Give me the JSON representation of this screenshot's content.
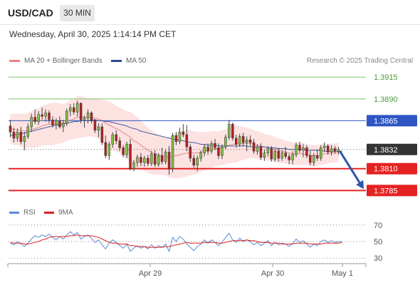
{
  "header": {
    "symbol": "USD/CAD",
    "timeframe": "30 MIN"
  },
  "datetime": "Wednesday, April 30, 2025 1:14:14 PM CET",
  "legend": {
    "ma20": {
      "label": "MA 20 + Bollinger Bands",
      "color": "#f08080"
    },
    "ma50": {
      "label": "MA 50",
      "color": "#2e4a8f"
    }
  },
  "copyright": "Research © 2025 Trading Central",
  "rsi_legend": {
    "rsi": {
      "label": "RSI",
      "color": "#5b8bd9"
    },
    "ma9": {
      "label": "9MA",
      "color": "#e02020"
    }
  },
  "chart_data": [
    {
      "type": "candlestick",
      "title": "",
      "ylim": [
        1.3773,
        1.3925
      ],
      "x_ticks": [
        "Apr 29",
        "Apr 30",
        "May 1"
      ],
      "levels": [
        {
          "value": 1.3915,
          "label": "1.3915",
          "color": "#7cc26f",
          "badge": false
        },
        {
          "value": 1.389,
          "label": "1.3890",
          "color": "#7cc26f",
          "badge": false
        },
        {
          "value": 1.3865,
          "label": "1.3865",
          "color": "#2d56c4",
          "badge": true
        },
        {
          "value": 1.3832,
          "label": "1.3832",
          "color": "#333333",
          "badge": true,
          "dotted": true
        },
        {
          "value": 1.381,
          "label": "1.3810",
          "color": "#e52222",
          "badge": true
        },
        {
          "value": 1.3785,
          "label": "1.3785",
          "color": "#e52222",
          "badge": true
        }
      ],
      "colors": {
        "up": "#7fbf3f",
        "down": "#b22222",
        "band": "#fde2e2",
        "ma20": "#e08888",
        "ma50": "#3b5a9a",
        "arrow": "#2d56a8"
      },
      "ohlc": [
        [
          1.3859,
          1.3866,
          1.3846,
          1.3852
        ],
        [
          1.3852,
          1.3857,
          1.384,
          1.3845
        ],
        [
          1.3845,
          1.3856,
          1.3841,
          1.3852
        ],
        [
          1.3852,
          1.3858,
          1.3838,
          1.3841
        ],
        [
          1.3841,
          1.3852,
          1.3831,
          1.3847
        ],
        [
          1.3847,
          1.3862,
          1.3844,
          1.3858
        ],
        [
          1.3858,
          1.3873,
          1.3852,
          1.3869
        ],
        [
          1.3869,
          1.3878,
          1.3861,
          1.3864
        ],
        [
          1.3864,
          1.3876,
          1.386,
          1.3872
        ],
        [
          1.3872,
          1.388,
          1.3866,
          1.387
        ],
        [
          1.387,
          1.3878,
          1.3864,
          1.3874
        ],
        [
          1.3874,
          1.3877,
          1.3862,
          1.3866
        ],
        [
          1.3866,
          1.387,
          1.3857,
          1.386
        ],
        [
          1.386,
          1.3868,
          1.3855,
          1.3865
        ],
        [
          1.3865,
          1.387,
          1.3856,
          1.3858
        ],
        [
          1.3858,
          1.3866,
          1.3852,
          1.3862
        ],
        [
          1.3862,
          1.3879,
          1.3859,
          1.3876
        ],
        [
          1.3876,
          1.3884,
          1.387,
          1.388
        ],
        [
          1.388,
          1.3885,
          1.3872,
          1.3875
        ],
        [
          1.3875,
          1.3888,
          1.387,
          1.3885
        ],
        [
          1.3885,
          1.3886,
          1.3862,
          1.3866
        ],
        [
          1.3866,
          1.3871,
          1.3857,
          1.3868
        ],
        [
          1.3868,
          1.3878,
          1.3862,
          1.3874
        ],
        [
          1.3874,
          1.3876,
          1.3862,
          1.3865
        ],
        [
          1.3865,
          1.3867,
          1.3851,
          1.3854
        ],
        [
          1.3854,
          1.3862,
          1.3846,
          1.3858
        ],
        [
          1.3858,
          1.3862,
          1.3837,
          1.384
        ],
        [
          1.384,
          1.3848,
          1.3822,
          1.3825
        ],
        [
          1.3825,
          1.3841,
          1.382,
          1.3838
        ],
        [
          1.3838,
          1.3852,
          1.3834,
          1.3849
        ],
        [
          1.3849,
          1.3854,
          1.3838,
          1.3842
        ],
        [
          1.3842,
          1.3846,
          1.383,
          1.3834
        ],
        [
          1.3834,
          1.3837,
          1.3823,
          1.3826
        ],
        [
          1.3826,
          1.3841,
          1.3822,
          1.3838
        ],
        [
          1.3838,
          1.3844,
          1.3808,
          1.381
        ],
        [
          1.381,
          1.382,
          1.3807,
          1.3817
        ],
        [
          1.3817,
          1.3826,
          1.3812,
          1.3823
        ],
        [
          1.3823,
          1.3828,
          1.3813,
          1.3817
        ],
        [
          1.3817,
          1.3825,
          1.3812,
          1.3822
        ],
        [
          1.3822,
          1.3826,
          1.3813,
          1.3816
        ],
        [
          1.3816,
          1.383,
          1.3813,
          1.3827
        ],
        [
          1.3827,
          1.3831,
          1.3812,
          1.3815
        ],
        [
          1.3815,
          1.3828,
          1.3812,
          1.3825
        ],
        [
          1.3825,
          1.3834,
          1.3815,
          1.3818
        ],
        [
          1.3818,
          1.3832,
          1.3815,
          1.3829
        ],
        [
          1.3829,
          1.3836,
          1.3803,
          1.381
        ],
        [
          1.381,
          1.3851,
          1.3806,
          1.3848
        ],
        [
          1.3848,
          1.3852,
          1.3837,
          1.3841
        ],
        [
          1.3841,
          1.3857,
          1.3838,
          1.3852
        ],
        [
          1.3852,
          1.3861,
          1.3846,
          1.3849
        ],
        [
          1.3849,
          1.386,
          1.383,
          1.3835
        ],
        [
          1.3835,
          1.3838,
          1.3818,
          1.3822
        ],
        [
          1.3822,
          1.3826,
          1.3811,
          1.3814
        ],
        [
          1.3814,
          1.3825,
          1.3807,
          1.3822
        ],
        [
          1.3822,
          1.3831,
          1.3818,
          1.3828
        ],
        [
          1.3828,
          1.3838,
          1.3824,
          1.3835
        ],
        [
          1.3835,
          1.3839,
          1.3826,
          1.383
        ],
        [
          1.383,
          1.3842,
          1.3827,
          1.3839
        ],
        [
          1.3839,
          1.3844,
          1.3831,
          1.3834
        ],
        [
          1.3834,
          1.3839,
          1.3821,
          1.3825
        ],
        [
          1.3825,
          1.3838,
          1.3821,
          1.3835
        ],
        [
          1.3835,
          1.3849,
          1.3832,
          1.3846
        ],
        [
          1.3846,
          1.3866,
          1.3843,
          1.3861
        ],
        [
          1.3861,
          1.3863,
          1.3842,
          1.3845
        ],
        [
          1.3845,
          1.3849,
          1.3834,
          1.3838
        ],
        [
          1.3838,
          1.385,
          1.3835,
          1.3847
        ],
        [
          1.3847,
          1.3851,
          1.3836,
          1.384
        ],
        [
          1.384,
          1.3847,
          1.383,
          1.3843
        ],
        [
          1.3843,
          1.3848,
          1.3836,
          1.384
        ],
        [
          1.384,
          1.3844,
          1.3827,
          1.383
        ],
        [
          1.383,
          1.3838,
          1.3826,
          1.3835
        ],
        [
          1.3835,
          1.3839,
          1.382,
          1.3823
        ],
        [
          1.3823,
          1.3832,
          1.3819,
          1.3828
        ],
        [
          1.3828,
          1.3836,
          1.3824,
          1.3833
        ],
        [
          1.3833,
          1.3836,
          1.3818,
          1.3821
        ],
        [
          1.3821,
          1.3833,
          1.3818,
          1.383
        ],
        [
          1.383,
          1.3834,
          1.3818,
          1.3822
        ],
        [
          1.3822,
          1.3831,
          1.3819,
          1.3828
        ],
        [
          1.3828,
          1.3835,
          1.3821,
          1.3824
        ],
        [
          1.3824,
          1.3827,
          1.3815,
          1.382
        ],
        [
          1.382,
          1.383,
          1.3815,
          1.3826
        ],
        [
          1.3826,
          1.384,
          1.3823,
          1.3837
        ],
        [
          1.3837,
          1.3841,
          1.3828,
          1.3831
        ],
        [
          1.3831,
          1.3838,
          1.3823,
          1.3834
        ],
        [
          1.3834,
          1.3837,
          1.3822,
          1.3825
        ],
        [
          1.3825,
          1.383,
          1.3814,
          1.3817
        ],
        [
          1.3817,
          1.3828,
          1.3813,
          1.3825
        ],
        [
          1.3825,
          1.3832,
          1.3819,
          1.3822
        ],
        [
          1.3822,
          1.3837,
          1.3819,
          1.3834
        ],
        [
          1.3834,
          1.384,
          1.3829,
          1.3836
        ],
        [
          1.3836,
          1.3838,
          1.3826,
          1.3829
        ],
        [
          1.3829,
          1.3837,
          1.3825,
          1.3833
        ],
        [
          1.3833,
          1.3836,
          1.3827,
          1.383
        ],
        [
          1.383,
          1.3835,
          1.3826,
          1.3832
        ]
      ],
      "ma20": [
        1.3856,
        1.3855,
        1.3855,
        1.3854,
        1.3853,
        1.3854,
        1.3855,
        1.3856,
        1.3857,
        1.3859,
        1.386,
        1.3861,
        1.3861,
        1.3862,
        1.3862,
        1.3862,
        1.3864,
        1.3866,
        1.3867,
        1.3869,
        1.3869,
        1.3869,
        1.3869,
        1.3869,
        1.3868,
        1.3867,
        1.3865,
        1.3862,
        1.386,
        1.3858,
        1.3856,
        1.3854,
        1.3851,
        1.3849,
        1.3846,
        1.3842,
        1.384,
        1.3837,
        1.3834,
        1.3831,
        1.3829,
        1.3827,
        1.3826,
        1.3825,
        1.3824,
        1.3823,
        1.3824,
        1.3825,
        1.3826,
        1.3827,
        1.3828,
        1.3828,
        1.3828,
        1.3828,
        1.3829,
        1.383,
        1.3831,
        1.3832,
        1.3833,
        1.3833,
        1.3834,
        1.3835,
        1.3837,
        1.3838,
        1.3838,
        1.3839,
        1.3839,
        1.3839,
        1.3839,
        1.3838,
        1.3837,
        1.3836,
        1.3835,
        1.3834,
        1.3833,
        1.3832,
        1.3831,
        1.383,
        1.3829,
        1.3828,
        1.3827,
        1.3827,
        1.3827,
        1.3827,
        1.3826,
        1.3825,
        1.3825,
        1.3825,
        1.3826,
        1.3827,
        1.3827,
        1.3828,
        1.3828,
        1.3829,
        1.3829
      ],
      "bb_width": [
        0.0017,
        0.0018,
        0.0018,
        0.0019,
        0.002,
        0.002,
        0.0021,
        0.0022,
        0.0022,
        0.0023,
        0.0023,
        0.0024,
        0.0024,
        0.0024,
        0.0023,
        0.0022,
        0.0022,
        0.0023,
        0.0023,
        0.0024,
        0.0024,
        0.0023,
        0.0022,
        0.0022,
        0.0022,
        0.0023,
        0.0024,
        0.0026,
        0.0027,
        0.0027,
        0.0026,
        0.0026,
        0.0027,
        0.0027,
        0.0029,
        0.003,
        0.0029,
        0.0028,
        0.0027,
        0.0026,
        0.0025,
        0.0024,
        0.0023,
        0.0022,
        0.0022,
        0.0023,
        0.0025,
        0.0026,
        0.0027,
        0.0027,
        0.0027,
        0.0026,
        0.0025,
        0.0024,
        0.0023,
        0.0022,
        0.0021,
        0.0021,
        0.002,
        0.002,
        0.002,
        0.002,
        0.0021,
        0.0021,
        0.0021,
        0.002,
        0.0019,
        0.0018,
        0.0017,
        0.0016,
        0.0016,
        0.0016,
        0.0015,
        0.0015,
        0.0015,
        0.0014,
        0.0014,
        0.0014,
        0.0013,
        0.0013,
        0.0013,
        0.0013,
        0.0013,
        0.0013,
        0.0012,
        0.0012,
        0.0012,
        0.0012,
        0.0012,
        0.0012,
        0.0011,
        0.0011,
        0.0011,
        0.0011,
        0.0011
      ],
      "ma50": [
        1.3848,
        1.3849,
        1.3849,
        1.385,
        1.3851,
        1.3852,
        1.3853,
        1.3854,
        1.3855,
        1.3856,
        1.3857,
        1.3858,
        1.3859,
        1.386,
        1.386,
        1.3861,
        1.3862,
        1.3863,
        1.3864,
        1.3864,
        1.3865,
        1.3865,
        1.3865,
        1.3866,
        1.3866,
        1.3865,
        1.3865,
        1.3864,
        1.3864,
        1.3863,
        1.3862,
        1.3861,
        1.386,
        1.3859,
        1.3857,
        1.3856,
        1.3855,
        1.3853,
        1.3852,
        1.3851,
        1.385,
        1.3849,
        1.3848,
        1.3847,
        1.3846,
        1.3845,
        1.3844,
        1.3843,
        1.3843,
        1.3842,
        1.3841,
        1.384,
        1.384,
        1.3839,
        1.3838,
        1.3838,
        1.3837,
        1.3837,
        1.3837,
        1.3836,
        1.3836,
        1.3836,
        1.3836,
        1.3836,
        1.3836,
        1.3836,
        1.3836,
        1.3836,
        1.3835,
        1.3835,
        1.3835,
        1.3835,
        1.3835,
        1.3834,
        1.3834,
        1.3834,
        1.3833,
        1.3833,
        1.3833,
        1.3832,
        1.3832,
        1.3832,
        1.3832,
        1.3832,
        1.3831,
        1.3831,
        1.3831,
        1.3831,
        1.3831,
        1.383,
        1.383,
        1.383,
        1.383,
        1.383,
        1.383
      ],
      "forecast": {
        "from": 1.383,
        "to": 1.3785
      }
    },
    {
      "type": "line",
      "title": "",
      "ylim": [
        25,
        75
      ],
      "y_ticks": [
        70,
        50,
        30
      ],
      "series": [
        {
          "name": "RSI",
          "values": [
            48,
            46,
            50,
            47,
            44,
            48,
            53,
            57,
            55,
            58,
            56,
            59,
            55,
            52,
            56,
            53,
            58,
            62,
            58,
            61,
            53,
            56,
            58,
            54,
            49,
            52,
            46,
            41,
            48,
            52,
            49,
            45,
            42,
            47,
            38,
            42,
            45,
            42,
            44,
            41,
            46,
            42,
            45,
            43,
            47,
            38,
            55,
            50,
            56,
            53,
            47,
            43,
            39,
            44,
            47,
            52,
            48,
            52,
            49,
            45,
            49,
            55,
            60,
            52,
            49,
            54,
            50,
            52,
            50,
            46,
            49,
            45,
            48,
            51,
            45,
            49,
            46,
            48,
            47,
            44,
            48,
            53,
            49,
            51,
            47,
            43,
            47,
            45,
            50,
            52,
            49,
            51,
            49,
            50,
            50
          ]
        },
        {
          "name": "9MA",
          "values": [
            49,
            48,
            48,
            48,
            47,
            47,
            48,
            49,
            50,
            52,
            53,
            55,
            56,
            56,
            56,
            56,
            56,
            57,
            57,
            58,
            57,
            57,
            57,
            57,
            56,
            55,
            53,
            51,
            49,
            48,
            48,
            47,
            47,
            47,
            45,
            45,
            44,
            44,
            44,
            43,
            43,
            43,
            43,
            43,
            44,
            44,
            45,
            46,
            47,
            48,
            49,
            48,
            48,
            48,
            48,
            49,
            49,
            49,
            49,
            48,
            48,
            49,
            50,
            51,
            51,
            51,
            51,
            52,
            51,
            51,
            50,
            49,
            49,
            49,
            48,
            48,
            48,
            47,
            47,
            47,
            47,
            48,
            48,
            48,
            48,
            47,
            47,
            47,
            47,
            48,
            48,
            48,
            48,
            48,
            49
          ]
        }
      ]
    }
  ]
}
